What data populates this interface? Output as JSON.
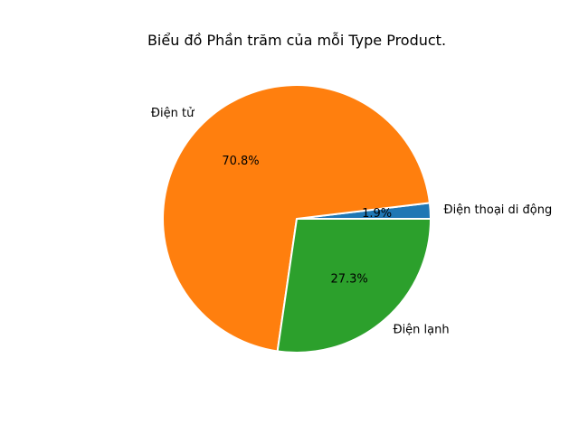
{
  "chart_data": {
    "type": "pie",
    "title": "Biểu đồ Phần trăm của mỗi Type Product.",
    "categories": [
      "Điện thoại di động",
      "Điện tử",
      "Điện lạnh"
    ],
    "values": [
      1.9,
      70.8,
      27.3
    ],
    "value_labels": [
      "1.9%",
      "70.8%",
      "27.3%"
    ],
    "colors": [
      "#1f77b4",
      "#ff7f0e",
      "#2ca02c"
    ],
    "start_angle": 0,
    "direction": "counterclockwise",
    "legend": false
  }
}
